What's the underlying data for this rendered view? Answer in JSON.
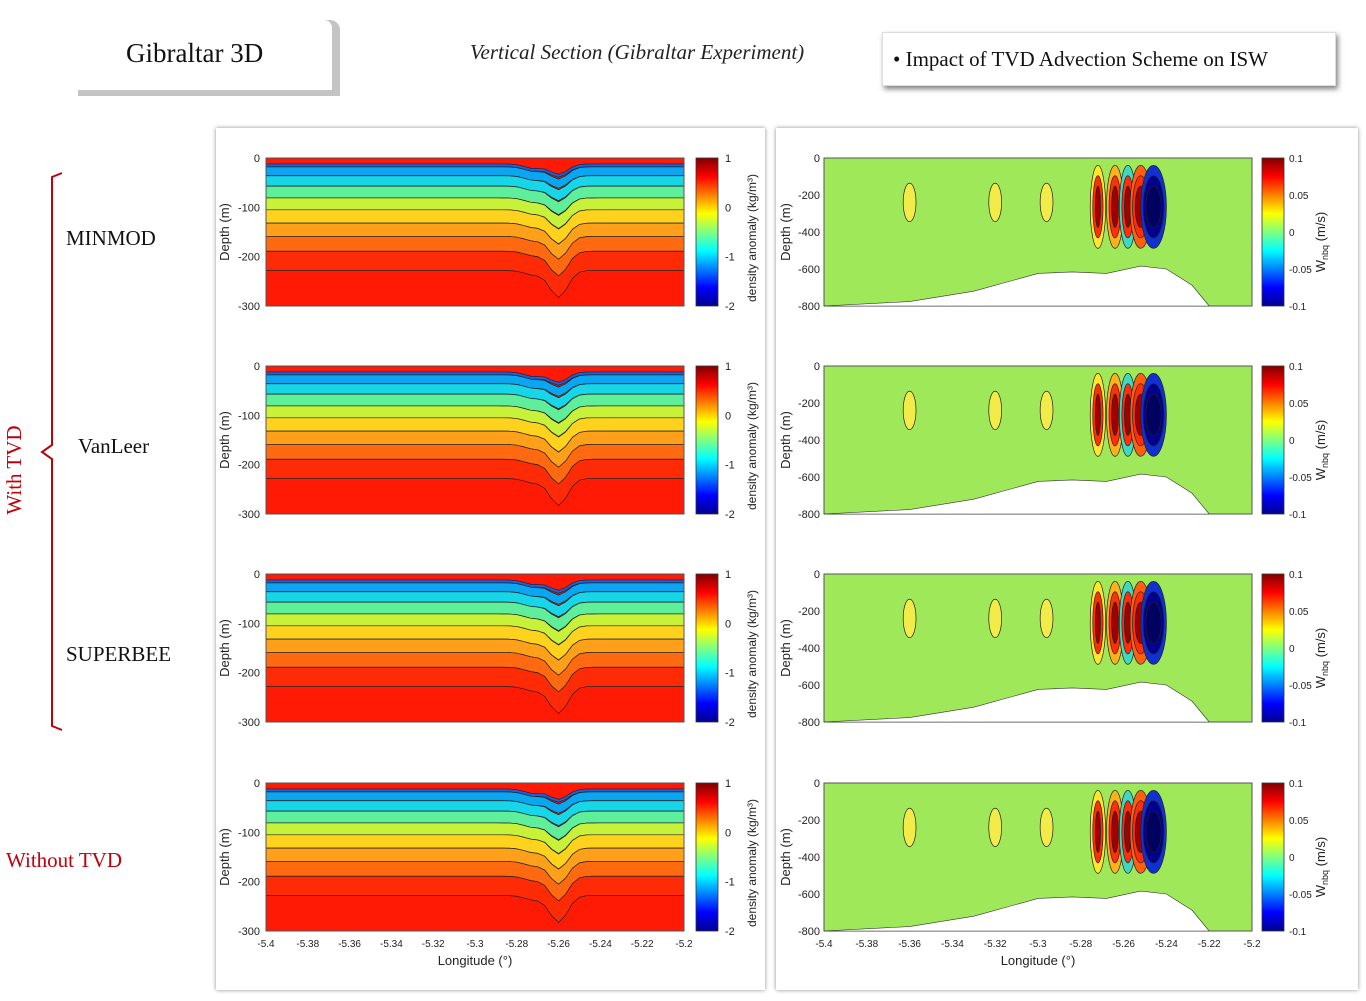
{
  "header": {
    "title": "Gibraltar 3D",
    "subtitle": "Vertical Section (Gibraltar Experiment)",
    "impact_note": "Impact of  TVD Advection Scheme on ISW"
  },
  "labels": {
    "with_tvd": "With TVD",
    "without_tvd": "Without TVD",
    "schemes": [
      "MINMOD",
      "VanLeer",
      "SUPERBEE"
    ]
  },
  "density_panels": {
    "ylabel": "Depth (m)",
    "yticks": [
      "0",
      "-100",
      "-200",
      "-300"
    ],
    "cbar_label": "density anomaly (kg/m³)",
    "cbar_ticks": [
      "1",
      "0",
      "-1",
      "-2"
    ],
    "xlabel": "Longitude (°)",
    "xticks": [
      "-5.4",
      "-5.38",
      "-5.36",
      "-5.34",
      "-5.32",
      "-5.3",
      "-5.28",
      "-5.26",
      "-5.24",
      "-5.22",
      "-5.2"
    ]
  },
  "velocity_panels": {
    "ylabel": "Depth (m)",
    "yticks": [
      "0",
      "-200",
      "-400",
      "-600",
      "-800"
    ],
    "cbar_label": "W",
    "cbar_sub": "nbq",
    "cbar_unit": "(m/s)",
    "cbar_ticks": [
      "0.1",
      "0.05",
      "0",
      "-0.05",
      "-0.1"
    ],
    "xlabel": "Longitude (°)",
    "xticks": [
      "-5.4",
      "-5.38",
      "-5.36",
      "-5.34",
      "-5.32",
      "-5.3",
      "-5.28",
      "-5.26",
      "-5.24",
      "-5.22",
      "-5.2"
    ]
  },
  "colors": {
    "jet": [
      "#00008f",
      "#0000ff",
      "#0080ff",
      "#00ffff",
      "#80ff80",
      "#ffff00",
      "#ff8000",
      "#ff0000",
      "#800000"
    ],
    "velocity_background": "#9fe85a",
    "label_red": "#c0000a"
  }
}
